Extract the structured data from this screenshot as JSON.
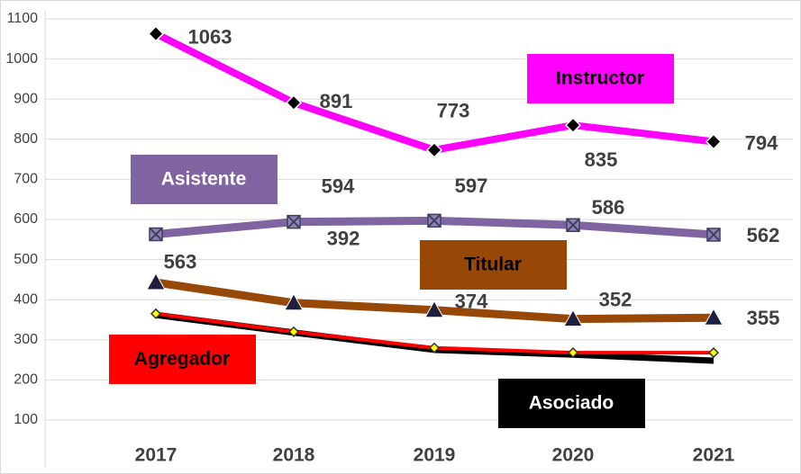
{
  "chart_data": {
    "type": "line",
    "categories": [
      "2017",
      "2018",
      "2019",
      "2020",
      "2021"
    ],
    "series": [
      {
        "name": "Asociado",
        "color": "#000000",
        "marker": "none",
        "values": [
          362,
          318,
          275,
          263,
          248
        ]
      },
      {
        "name": "Agregador",
        "color": "#ff0000",
        "marker": "diamond",
        "marker_color": "#ffff00",
        "values": [
          365,
          320,
          280,
          268,
          268
        ]
      },
      {
        "name": "Titular",
        "color": "#974706",
        "marker": "triangle",
        "marker_color": "#1f1f3f",
        "values": [
          443,
          392,
          374,
          352,
          355
        ]
      },
      {
        "name": "Asistente",
        "color": "#8064a2",
        "marker": "xsquare",
        "marker_color": "#3f3f5f",
        "values": [
          563,
          594,
          597,
          586,
          562
        ]
      },
      {
        "name": "Instructor",
        "color": "#ff00ff",
        "marker": "diamond",
        "marker_color": "#000000",
        "values": [
          1063,
          891,
          773,
          835,
          794
        ]
      }
    ],
    "ylim": [
      100,
      1100
    ],
    "yticks": [
      100,
      200,
      300,
      400,
      500,
      600,
      700,
      800,
      900,
      1000,
      1100
    ],
    "grid": true
  }
}
